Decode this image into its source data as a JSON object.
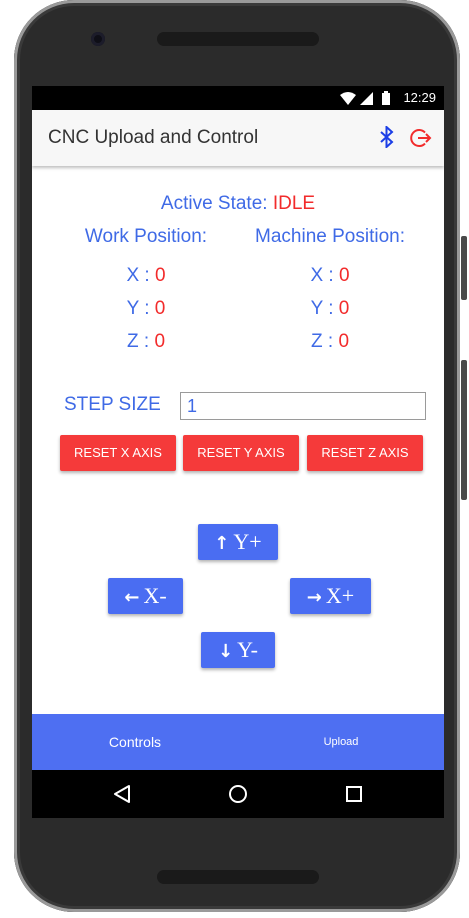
{
  "status_bar": {
    "time": "12:29"
  },
  "app_bar": {
    "title": "CNC Upload and Control"
  },
  "state": {
    "label": "Active State: ",
    "value": "IDLE"
  },
  "work_position": {
    "heading": "Work Position:",
    "rows": [
      {
        "axis": "X : ",
        "value": "0"
      },
      {
        "axis": "Y : ",
        "value": "0"
      },
      {
        "axis": "Z : ",
        "value": "0"
      }
    ]
  },
  "machine_position": {
    "heading": "Machine Position:",
    "rows": [
      {
        "axis": "X : ",
        "value": "0"
      },
      {
        "axis": "Y : ",
        "value": "0"
      },
      {
        "axis": "Z : ",
        "value": "0"
      }
    ]
  },
  "step": {
    "label": "STEP SIZE",
    "value": "1"
  },
  "reset_buttons": [
    "RESET X AXIS",
    "RESET Y AXIS",
    "RESET Z AXIS"
  ],
  "jog": {
    "y_plus": "Y+",
    "x_minus": "X-",
    "x_plus": "X+",
    "y_minus": "Y-"
  },
  "bottom_nav": {
    "tabs": [
      "Controls",
      "Upload"
    ]
  },
  "colors": {
    "accent_blue": "#3f6ae6",
    "value_red": "#f22b2b",
    "reset_red": "#f53a3a",
    "jog_blue": "#4a6df2",
    "nav_blue": "#4e6ff2"
  },
  "icons": {
    "app_bar": [
      "bluetooth-icon",
      "logout-icon"
    ],
    "status_bar": [
      "wifi-icon",
      "signal-icon",
      "battery-icon"
    ],
    "system_nav": [
      "back-icon",
      "home-icon",
      "recents-icon"
    ]
  }
}
